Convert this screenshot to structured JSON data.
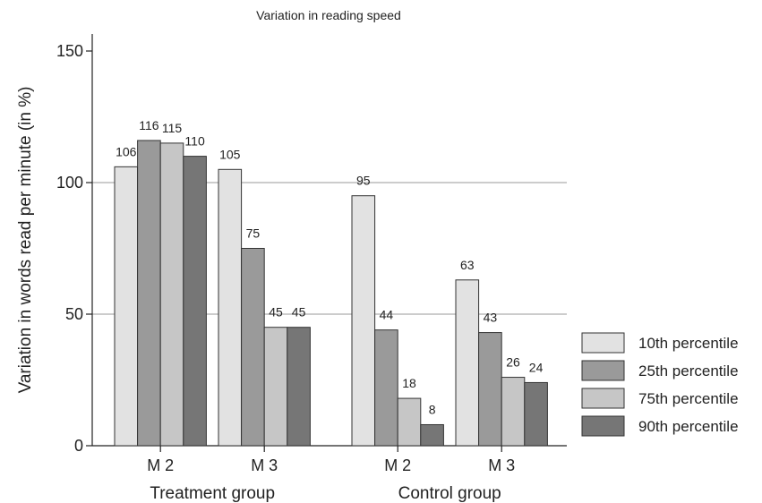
{
  "chart_data": {
    "type": "bar",
    "title": "Variation in reading speed",
    "ylabel": "Variation in words read per minute (in %)",
    "ylim": [
      0,
      150
    ],
    "yticks": [
      0,
      50,
      100,
      150
    ],
    "gridlines": [
      50,
      100
    ],
    "legend_position": "right",
    "groups": [
      {
        "label": "Treatment group",
        "categories": [
          {
            "label": "M 2",
            "values": [
              106,
              116,
              115,
              110
            ]
          },
          {
            "label": "M 3",
            "values": [
              105,
              75,
              45,
              45
            ]
          }
        ]
      },
      {
        "label": "Control group",
        "categories": [
          {
            "label": "M 2",
            "values": [
              95,
              44,
              18,
              8
            ]
          },
          {
            "label": "M 3",
            "values": [
              63,
              43,
              26,
              24
            ]
          }
        ]
      }
    ],
    "series": [
      {
        "name": "10th percentile",
        "color": "#e2e2e2"
      },
      {
        "name": "25th percentile",
        "color": "#9a9a9a"
      },
      {
        "name": "75th percentile",
        "color": "#c6c6c6"
      },
      {
        "name": "90th percentile",
        "color": "#767676"
      }
    ]
  }
}
